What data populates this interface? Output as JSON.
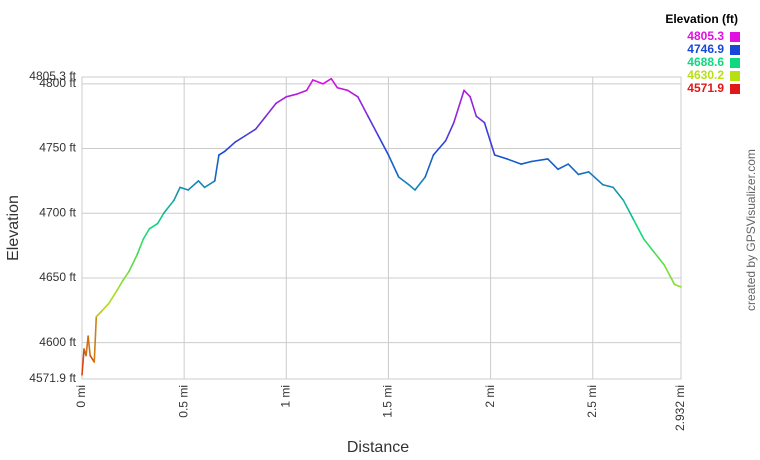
{
  "chart_data": {
    "type": "line",
    "xlabel": "Distance",
    "ylabel": "Elevation",
    "credit": "created by GPSVisualizer.com",
    "x": [
      0,
      0.01,
      0.02,
      0.03,
      0.04,
      0.06,
      0.07,
      0.1,
      0.13,
      0.17,
      0.2,
      0.23,
      0.27,
      0.3,
      0.33,
      0.37,
      0.4,
      0.45,
      0.48,
      0.52,
      0.57,
      0.6,
      0.65,
      0.67,
      0.7,
      0.75,
      0.8,
      0.85,
      0.9,
      0.95,
      1.0,
      1.05,
      1.1,
      1.13,
      1.18,
      1.22,
      1.25,
      1.3,
      1.35,
      1.4,
      1.45,
      1.5,
      1.55,
      1.6,
      1.63,
      1.68,
      1.72,
      1.78,
      1.82,
      1.87,
      1.9,
      1.93,
      1.97,
      2.02,
      2.08,
      2.15,
      2.2,
      2.28,
      2.33,
      2.38,
      2.43,
      2.48,
      2.55,
      2.6,
      2.65,
      2.7,
      2.75,
      2.8,
      2.85,
      2.9,
      2.932
    ],
    "values": [
      4575,
      4595,
      4590,
      4605,
      4590,
      4585,
      4620,
      4625,
      4630,
      4640,
      4648,
      4655,
      4668,
      4680,
      4688,
      4692,
      4700,
      4710,
      4720,
      4718,
      4725,
      4720,
      4725,
      4745,
      4748,
      4755,
      4760,
      4765,
      4775,
      4785,
      4790,
      4792,
      4795,
      4803,
      4800,
      4804,
      4797,
      4795,
      4790,
      4775,
      4760,
      4745,
      4728,
      4722,
      4718,
      4728,
      4745,
      4756,
      4770,
      4795,
      4790,
      4775,
      4770,
      4745,
      4742,
      4738,
      4740,
      4742,
      4734,
      4738,
      4730,
      4732,
      4722,
      4720,
      4710,
      4695,
      4680,
      4670,
      4660,
      4645,
      4643
    ],
    "xlim": [
      0,
      2.932
    ],
    "ylim": [
      4571.9,
      4805.3
    ],
    "xticks": [
      {
        "value": 0,
        "label": "0 mi"
      },
      {
        "value": 0.5,
        "label": "0.5 mi"
      },
      {
        "value": 1,
        "label": "1 mi"
      },
      {
        "value": 1.5,
        "label": "1.5 mi"
      },
      {
        "value": 2,
        "label": "2 mi"
      },
      {
        "value": 2.5,
        "label": "2.5 mi"
      },
      {
        "value": 2.932,
        "label": "2.932 mi"
      }
    ],
    "yticks": [
      {
        "value": 4571.9,
        "label": "4571.9 ft"
      },
      {
        "value": 4600,
        "label": "4600 ft"
      },
      {
        "value": 4650,
        "label": "4650 ft"
      },
      {
        "value": 4700,
        "label": "4700 ft"
      },
      {
        "value": 4750,
        "label": "4750 ft"
      },
      {
        "value": 4800,
        "label": "4800 ft"
      },
      {
        "value": 4805.3,
        "label": "4805.3 ft"
      }
    ],
    "grid": true,
    "legend": {
      "position": "top-right",
      "title": "Elevation (ft)",
      "entries": [
        {
          "value": 4805.3,
          "color": "#e010e0"
        },
        {
          "value": 4746.9,
          "color": "#1848d8"
        },
        {
          "value": 4688.6,
          "color": "#10d880"
        },
        {
          "value": 4630.2,
          "color": "#b8e010"
        },
        {
          "value": 4571.9,
          "color": "#e01818"
        }
      ]
    }
  }
}
